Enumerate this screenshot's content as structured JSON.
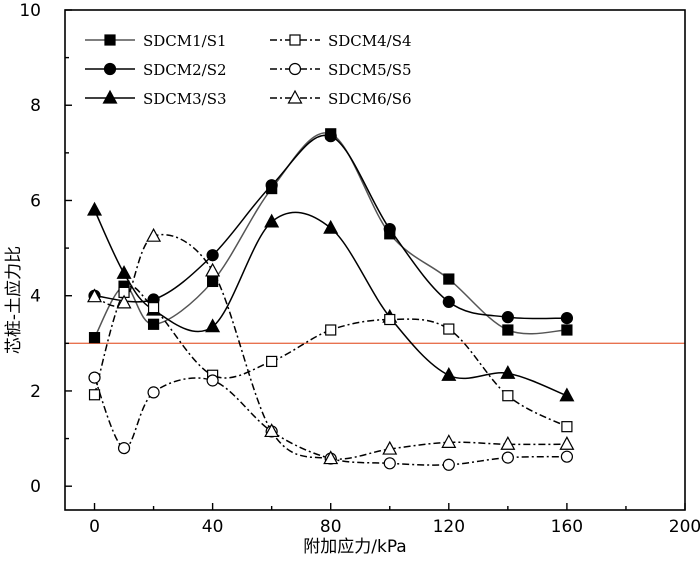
{
  "chart_data": {
    "type": "line",
    "xlabel": "附加应力/kPa",
    "ylabel": "芯桩-土应力比",
    "xlim": [
      -10,
      200
    ],
    "ylim": [
      -0.5,
      10
    ],
    "xticks": [
      "0",
      "40",
      "80",
      "120",
      "160",
      "200"
    ],
    "yticks": [
      "0",
      "2",
      "4",
      "6",
      "8",
      "10"
    ],
    "reference_line": {
      "y": 3.0,
      "color": "#e8724f"
    },
    "legend_position": "top-left",
    "series": [
      {
        "name": "SDCM1/S1",
        "marker": "square-filled",
        "line": "solid",
        "color": "#555555",
        "x": [
          0,
          10,
          20,
          40,
          60,
          80,
          100,
          120,
          140,
          160
        ],
        "y": [
          3.12,
          4.2,
          3.4,
          4.3,
          6.25,
          7.4,
          5.3,
          4.35,
          3.28,
          3.28
        ]
      },
      {
        "name": "SDCM2/S2",
        "marker": "circle-filled",
        "line": "solid",
        "color": "#000000",
        "x": [
          0,
          20,
          40,
          60,
          80,
          100,
          120,
          140,
          160
        ],
        "y": [
          4.0,
          3.92,
          4.85,
          6.32,
          7.35,
          5.4,
          3.87,
          3.55,
          3.53
        ]
      },
      {
        "name": "SDCM3/S3",
        "marker": "triangle-filled",
        "line": "solid",
        "color": "#000000",
        "x": [
          0,
          10,
          20,
          40,
          60,
          80,
          100,
          120,
          140,
          160
        ],
        "y": [
          5.8,
          4.47,
          3.7,
          3.35,
          5.55,
          5.42,
          3.55,
          2.33,
          2.37,
          1.9
        ]
      },
      {
        "name": "SDCM4/S4",
        "marker": "square-open",
        "line": "dashdot",
        "color": "#000000",
        "x": [
          0,
          10,
          20,
          40,
          60,
          80,
          100,
          120,
          140,
          160
        ],
        "y": [
          1.92,
          4.07,
          3.75,
          2.33,
          2.62,
          3.28,
          3.5,
          3.3,
          1.9,
          1.25
        ]
      },
      {
        "name": "SDCM5/S5",
        "marker": "circle-open",
        "line": "dashdot",
        "color": "#000000",
        "x": [
          0,
          10,
          20,
          40,
          60,
          80,
          100,
          120,
          140,
          160
        ],
        "y": [
          2.28,
          0.8,
          1.97,
          2.22,
          1.15,
          0.58,
          0.48,
          0.45,
          0.6,
          0.62
        ]
      },
      {
        "name": "SDCM6/S6",
        "marker": "triangle-open",
        "line": "dashdot",
        "color": "#000000",
        "x": [
          0,
          10,
          20,
          40,
          60,
          80,
          100,
          120,
          140,
          160
        ],
        "y": [
          3.98,
          3.85,
          5.25,
          4.52,
          1.15,
          0.58,
          0.78,
          0.92,
          0.88,
          0.88
        ]
      }
    ]
  }
}
